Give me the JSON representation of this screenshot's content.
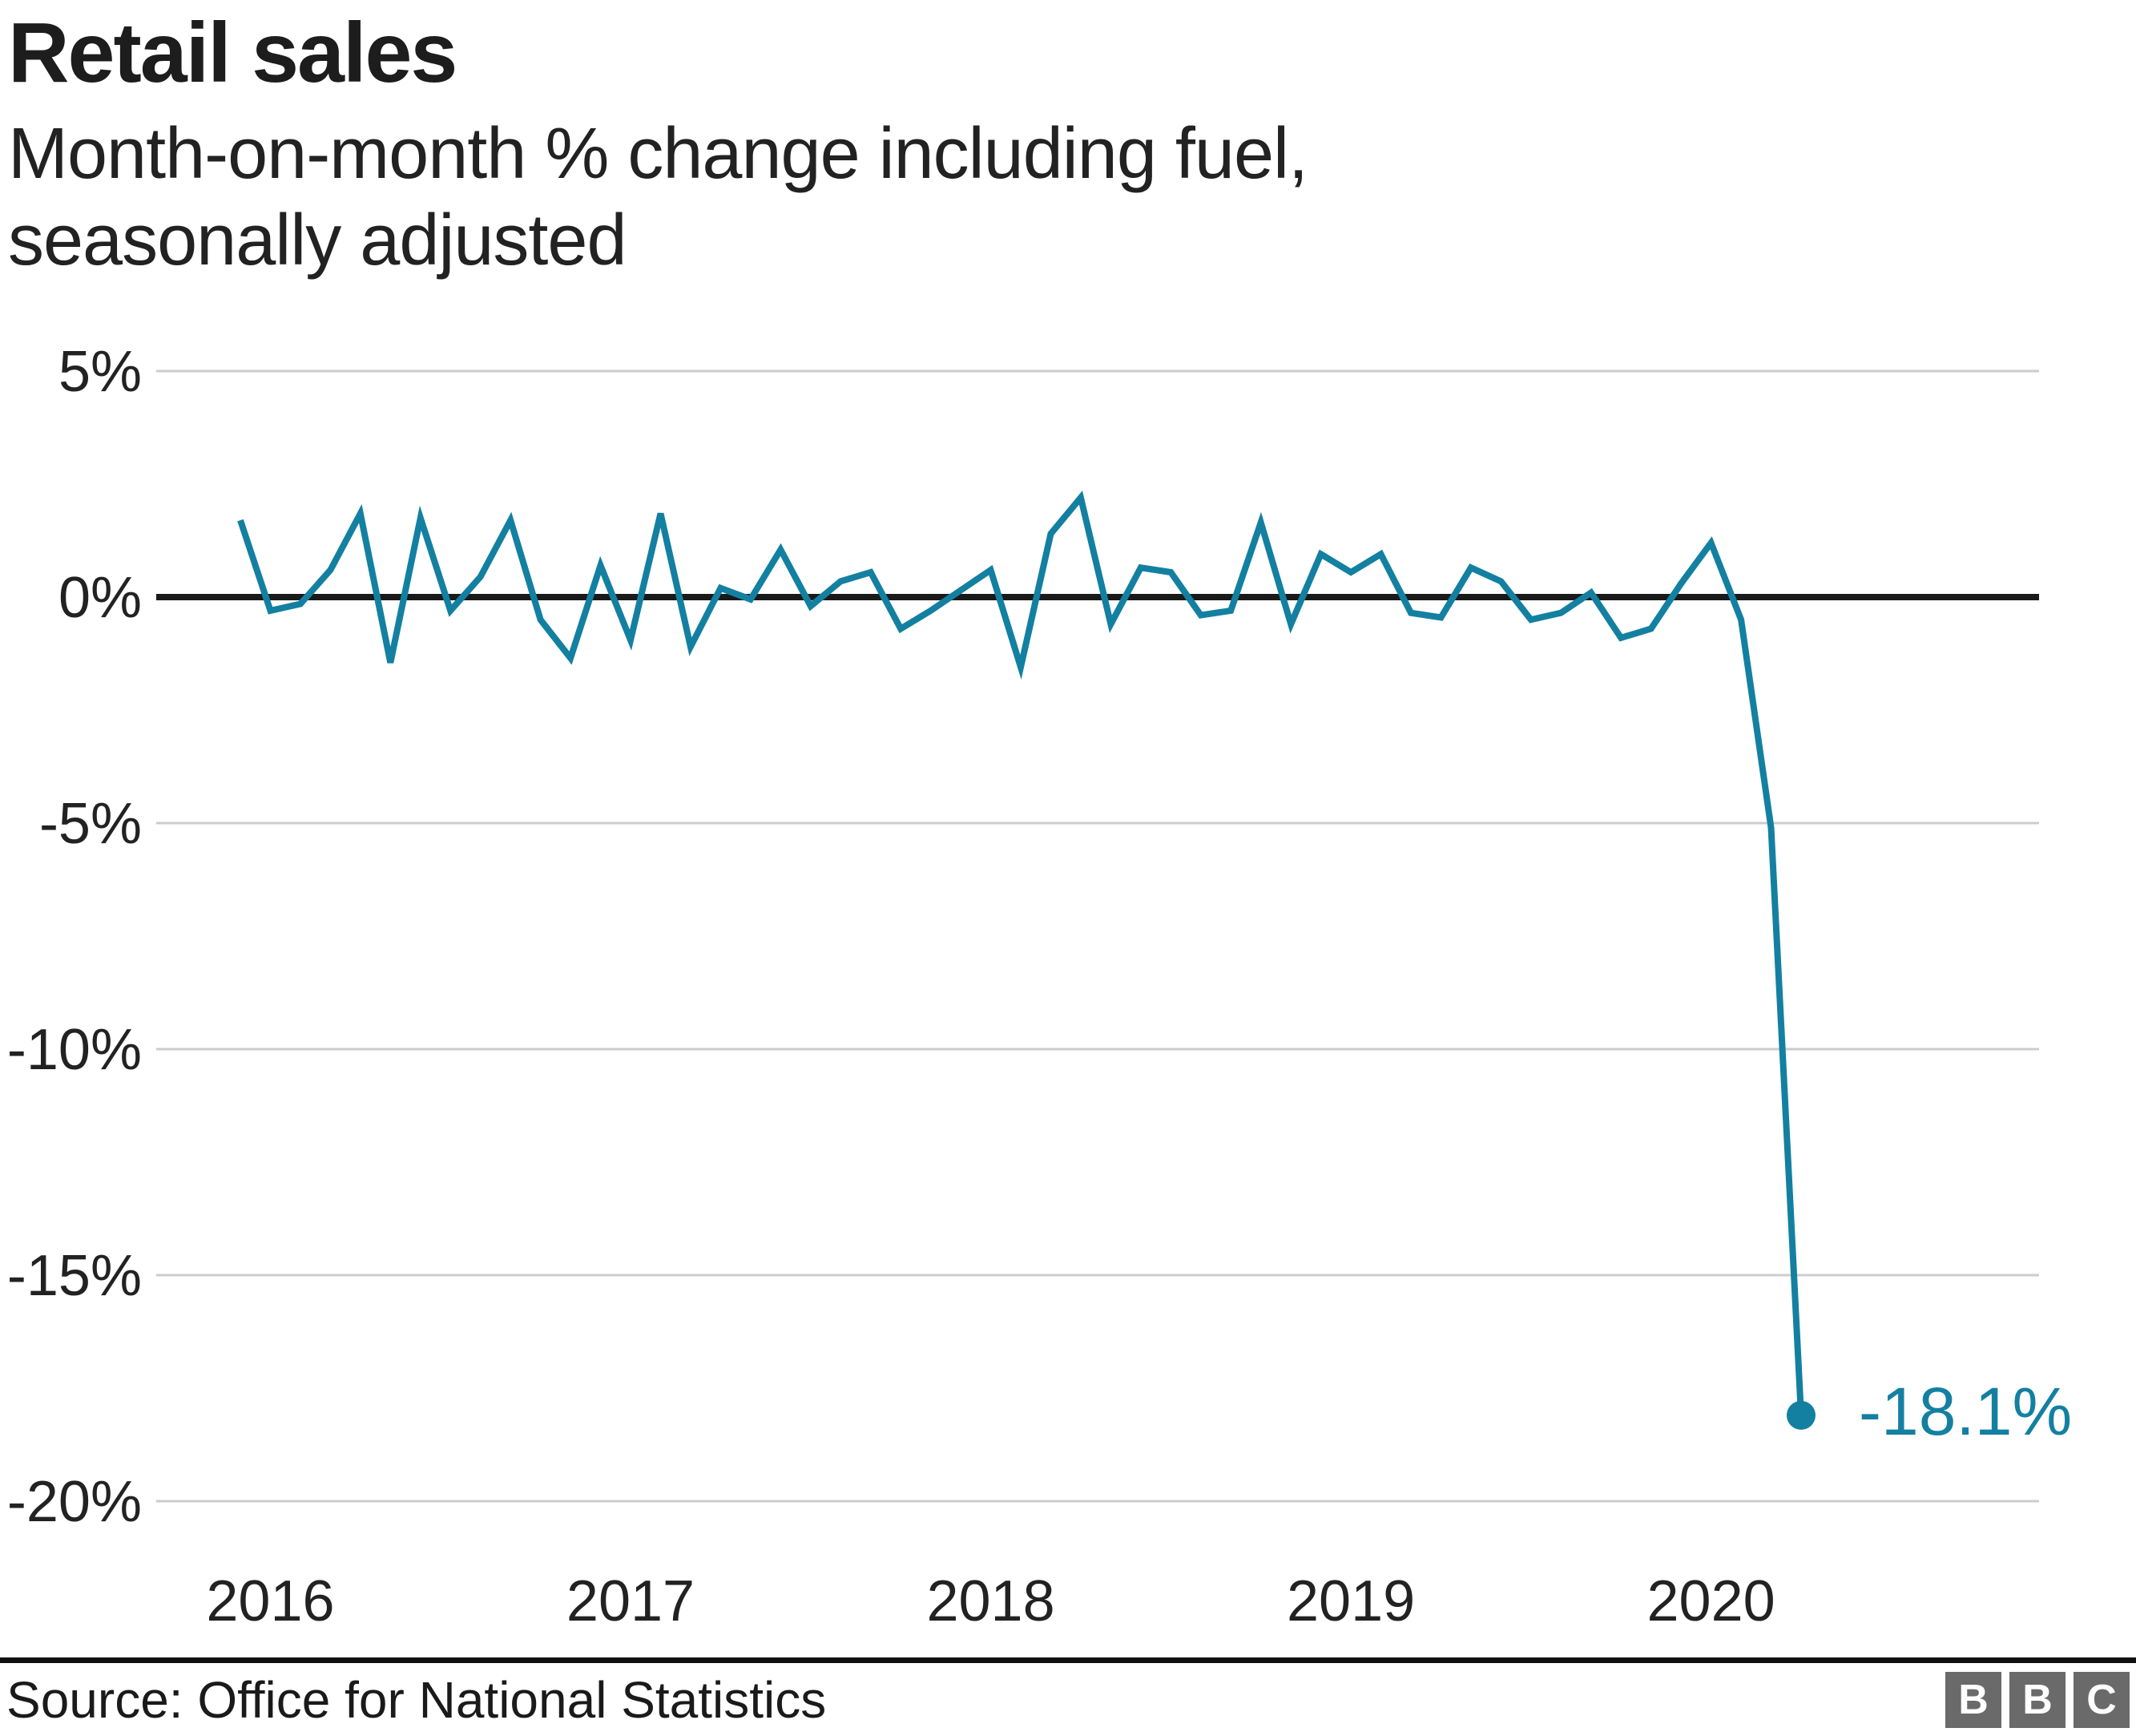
{
  "header": {
    "title": "Retail sales",
    "subtitle_line1": "Month-on-month % change including fuel,",
    "subtitle_line2": "seasonally adjusted"
  },
  "chart_data": {
    "type": "line",
    "title": "Retail sales",
    "subtitle": "Month-on-month % change including fuel, seasonally adjusted",
    "x_start_month": "2015-12",
    "x_end_month": "2020-04",
    "frequency": "monthly",
    "values": [
      1.7,
      -0.3,
      -0.15,
      0.6,
      1.85,
      -1.45,
      1.75,
      -0.3,
      0.45,
      1.7,
      -0.5,
      -1.35,
      0.7,
      -0.95,
      1.85,
      -1.1,
      0.2,
      -0.05,
      1.05,
      -0.2,
      0.35,
      0.55,
      -0.7,
      -0.3,
      0.15,
      0.6,
      -1.55,
      1.4,
      2.2,
      -0.6,
      0.65,
      0.55,
      -0.4,
      -0.3,
      1.65,
      -0.6,
      0.95,
      0.55,
      0.95,
      -0.35,
      -0.45,
      0.65,
      0.35,
      -0.5,
      -0.35,
      0.1,
      -0.9,
      -0.7,
      0.3,
      1.2,
      -0.5,
      -5.1,
      -18.1
    ],
    "ylim": [
      -20.5,
      5
    ],
    "grid": "horizontal",
    "zero_line": true,
    "yticks": [
      {
        "label": "5%",
        "value": 5
      },
      {
        "label": "0%",
        "value": 0
      },
      {
        "label": "-5%",
        "value": -5
      },
      {
        "label": "-10%",
        "value": -10
      },
      {
        "label": "-15%",
        "value": -15
      },
      {
        "label": "-20%",
        "value": -20
      }
    ],
    "xticks": [
      {
        "label": "2016",
        "month_index": 1
      },
      {
        "label": "2017",
        "month_index": 13
      },
      {
        "label": "2018",
        "month_index": 25
      },
      {
        "label": "2019",
        "month_index": 37
      },
      {
        "label": "2020",
        "month_index": 49
      }
    ],
    "annotation": {
      "label": "-18.1%",
      "value": -18.1,
      "month": "2020-04"
    }
  },
  "footer": {
    "source": "Source: Office for National Statistics",
    "logo_letters": [
      "B",
      "B",
      "C"
    ]
  },
  "colors": {
    "line": "#1380A1",
    "annotation_text": "#1380A1",
    "grid": "#cccccc",
    "zero_line": "#1a1a1a",
    "text": "#222222",
    "logo_block": "#6a6a6a"
  }
}
